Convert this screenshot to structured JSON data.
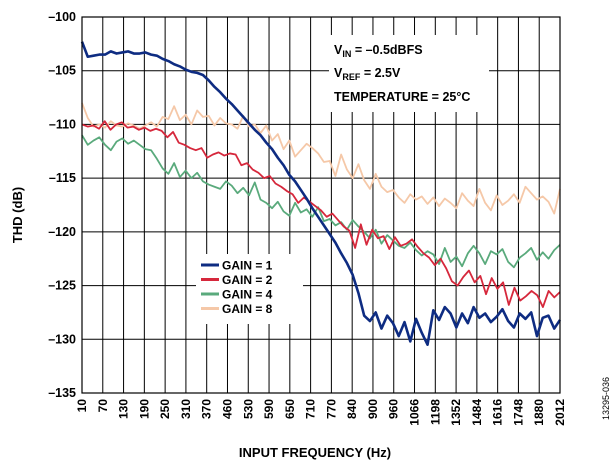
{
  "chart_data": {
    "type": "line",
    "xlabel": "INPUT FREQUENCY (Hz)",
    "ylabel": "THD (dB)",
    "ylim": [
      -135,
      -100
    ],
    "yticks": [
      -100,
      -105,
      -110,
      -115,
      -120,
      -125,
      -130,
      -135
    ],
    "ytick_labels": [
      "–100",
      "–105",
      "–110",
      "–115",
      "–120",
      "–125",
      "–130",
      "–135"
    ],
    "xticks": [
      "10",
      "70",
      "130",
      "190",
      "250",
      "310",
      "370",
      "460",
      "530",
      "590",
      "650",
      "710",
      "770",
      "840",
      "900",
      "960",
      "1066",
      "1198",
      "1352",
      "1484",
      "1616",
      "1748",
      "1880",
      "2012"
    ],
    "grid": true,
    "legend_position": "center-left",
    "annotations": {
      "vin_main": "V",
      "vin_sub": "IN",
      "vin_rest": " = –0.5dBFS",
      "vref_main": "V",
      "vref_sub": "REF",
      "vref_rest": " = 2.5V",
      "temperature": "TEMPERATURE = 25°C"
    },
    "figure_id": "13295-036",
    "series": [
      {
        "name": "GAIN = 1",
        "color": "#0e2c82",
        "values": [
          -102.3,
          -103.7,
          -103.6,
          -103.5,
          -103.5,
          -103.2,
          -103.4,
          -103.3,
          -103.2,
          -103.4,
          -103.4,
          -103.3,
          -103.5,
          -103.6,
          -103.9,
          -104.1,
          -104.4,
          -104.6,
          -104.9,
          -105.1,
          -105.2,
          -105.4,
          -105.9,
          -106.5,
          -107.0,
          -107.6,
          -108.1,
          -108.7,
          -109.3,
          -109.9,
          -110.5,
          -111.0,
          -111.7,
          -112.3,
          -113.1,
          -113.8,
          -114.7,
          -115.3,
          -116.1,
          -116.9,
          -117.8,
          -118.6,
          -119.4,
          -120.2,
          -121.0,
          -122.0,
          -122.9,
          -124.0,
          -125.7,
          -127.8,
          -128.3,
          -127.5,
          -129.0,
          -127.8,
          -128.5,
          -129.7,
          -128.4,
          -130.2,
          -128.1,
          -129.4,
          -130.5,
          -127.3,
          -128.2,
          -127.0,
          -127.6,
          -128.9,
          -127.6,
          -128.5,
          -127.0,
          -128.0,
          -127.6,
          -128.4,
          -127.9,
          -127.2,
          -128.3,
          -128.9,
          -127.6,
          -128.1,
          -127.5,
          -129.7,
          -128.0,
          -127.8,
          -129.0,
          -128.2
        ]
      },
      {
        "name": "GAIN = 2",
        "color": "#d6283c",
        "values": [
          -110.0,
          -110.2,
          -110.1,
          -110.4,
          -109.7,
          -110.5,
          -110.0,
          -109.8,
          -110.3,
          -110.2,
          -110.5,
          -110.3,
          -110.6,
          -110.4,
          -110.6,
          -111.2,
          -110.7,
          -111.7,
          -111.9,
          -112.2,
          -112.4,
          -112.2,
          -113.1,
          -112.8,
          -112.6,
          -112.9,
          -112.7,
          -112.8,
          -113.8,
          -113.6,
          -114.2,
          -114.5,
          -115.0,
          -114.8,
          -115.5,
          -115.8,
          -116.2,
          -116.5,
          -117.3,
          -116.8,
          -117.2,
          -117.6,
          -118.0,
          -118.6,
          -118.3,
          -118.9,
          -119.5,
          -119.9,
          -121.5,
          -119.3,
          -121.2,
          -119.8,
          -120.6,
          -120.4,
          -121.6,
          -120.5,
          -121.3,
          -121.1,
          -120.7,
          -121.4,
          -122.0,
          -122.4,
          -123.1,
          -122.5,
          -123.4,
          -124.6,
          -125.0,
          -124.2,
          -123.6,
          -124.7,
          -124.1,
          -125.8,
          -124.3,
          -125.3,
          -124.7,
          -126.8,
          -125.2,
          -126.4,
          -126.0,
          -125.5,
          -125.9,
          -127.0,
          -125.5,
          -126.1,
          -125.6
        ]
      },
      {
        "name": "GAIN = 4",
        "color": "#5aaa7c",
        "values": [
          -111.0,
          -111.9,
          -111.5,
          -111.2,
          -111.9,
          -112.4,
          -111.6,
          -111.3,
          -111.8,
          -111.5,
          -111.9,
          -112.3,
          -112.4,
          -113.2,
          -114.1,
          -114.6,
          -113.6,
          -114.9,
          -114.3,
          -115.0,
          -114.5,
          -115.3,
          -115.6,
          -115.8,
          -116.0,
          -115.3,
          -115.7,
          -116.4,
          -115.9,
          -116.6,
          -115.4,
          -117.0,
          -117.3,
          -117.8,
          -117.2,
          -118.1,
          -118.5,
          -117.3,
          -118.2,
          -117.9,
          -118.6,
          -117.7,
          -119.0,
          -118.8,
          -119.4,
          -119.1,
          -119.8,
          -118.9,
          -119.5,
          -120.0,
          -120.6,
          -119.8,
          -121.1,
          -120.3,
          -120.8,
          -121.3,
          -121.5,
          -121.0,
          -121.7,
          -122.2,
          -121.8,
          -122.1,
          -123.0,
          -121.5,
          -122.8,
          -122.3,
          -123.2,
          -122.0,
          -121.3,
          -122.0,
          -123.0,
          -121.8,
          -122.1,
          -121.6,
          -122.8,
          -123.3,
          -122.4,
          -122.0,
          -121.5,
          -122.6,
          -121.9,
          -122.5,
          -121.7,
          -121.2
        ]
      },
      {
        "name": "GAIN = 8",
        "color": "#f5c8a8",
        "values": [
          -108.0,
          -109.4,
          -110.2,
          -110.0,
          -110.3,
          -109.7,
          -110.1,
          -110.2,
          -109.9,
          -110.1,
          -110.4,
          -110.1,
          -109.8,
          -110.2,
          -109.3,
          -109.5,
          -108.3,
          -109.6,
          -109.1,
          -110.0,
          -108.7,
          -109.3,
          -109.2,
          -110.1,
          -109.4,
          -109.9,
          -110.0,
          -110.4,
          -109.2,
          -110.2,
          -110.0,
          -110.8,
          -110.1,
          -111.5,
          -110.9,
          -112.3,
          -111.5,
          -113.0,
          -112.4,
          -111.8,
          -112.2,
          -112.7,
          -113.5,
          -113.4,
          -114.8,
          -112.8,
          -114.2,
          -115.0,
          -113.7,
          -115.2,
          -116.0,
          -114.6,
          -115.8,
          -116.3,
          -116.1,
          -116.8,
          -117.3,
          -116.5,
          -117.0,
          -116.7,
          -117.4,
          -116.8,
          -117.6,
          -116.9,
          -117.3,
          -117.8,
          -116.4,
          -117.1,
          -117.6,
          -116.0,
          -117.3,
          -118.0,
          -116.6,
          -117.5,
          -117.1,
          -116.5,
          -117.3,
          -115.8,
          -116.4,
          -117.0,
          -116.7,
          -117.2,
          -118.3,
          -116.0
        ]
      }
    ]
  }
}
